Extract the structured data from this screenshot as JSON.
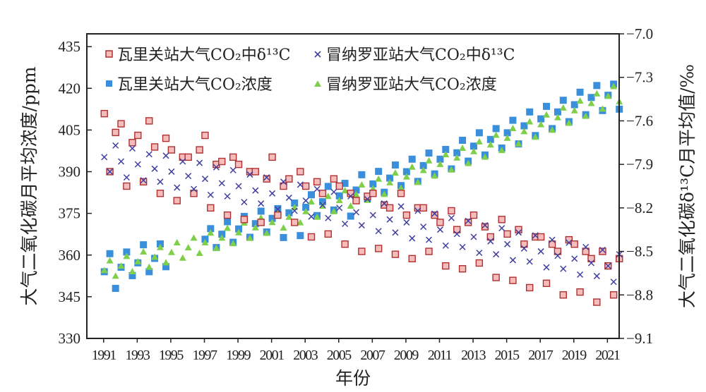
{
  "chart_data": {
    "type": "scatter",
    "xlabel": "年份",
    "ylabel_left": "大气二氧化碳月平均浓度/ppm",
    "ylabel_right": "大气二氧化碳δ¹³C月平均值/‰",
    "xlim": [
      1990,
      2021.7
    ],
    "ylim_left": [
      330,
      439.6
    ],
    "ylim_right": [
      -9.1,
      -7.0
    ],
    "xticks": [
      1991,
      1993,
      1995,
      1997,
      1999,
      2001,
      2003,
      2005,
      2007,
      2009,
      2011,
      2013,
      2015,
      2017,
      2019,
      2021
    ],
    "yticks_left": [
      330,
      345,
      360,
      375,
      390,
      405,
      420,
      435
    ],
    "yticks_right": [
      "-9.1",
      "-8.8",
      "-8.5",
      "-8.2",
      "-7.9",
      "-7.6",
      "-7.3",
      "-7.0"
    ],
    "grid": false,
    "legend_placement": "top-left",
    "x": [
      1991.04,
      1991.37,
      1991.71,
      1992.04,
      1992.37,
      1992.71,
      1993.04,
      1993.37,
      1993.71,
      1994.04,
      1994.37,
      1994.71,
      1995.04,
      1995.37,
      1995.71,
      1996.04,
      1996.37,
      1996.71,
      1997.04,
      1997.37,
      1997.71,
      1998.04,
      1998.37,
      1998.71,
      1999.04,
      1999.37,
      1999.71,
      2000.04,
      2000.37,
      2000.71,
      2001.04,
      2001.37,
      2001.71,
      2002.04,
      2002.37,
      2002.71,
      2003.04,
      2003.37,
      2003.71,
      2004.04,
      2004.37,
      2004.71,
      2005.04,
      2005.37,
      2005.71,
      2006.04,
      2006.37,
      2006.71,
      2007.04,
      2007.37,
      2007.71,
      2008.04,
      2008.37,
      2008.71,
      2009.04,
      2009.37,
      2009.71,
      2010.04,
      2010.37,
      2010.71,
      2011.04,
      2011.37,
      2011.71,
      2012.04,
      2012.37,
      2012.71,
      2013.04,
      2013.37,
      2013.71,
      2014.04,
      2014.37,
      2014.71,
      2015.04,
      2015.37,
      2015.71,
      2016.04,
      2016.37,
      2016.71,
      2017.04,
      2017.37,
      2017.71,
      2018.04,
      2018.37,
      2018.71,
      2019.04,
      2019.37,
      2019.71,
      2020.04,
      2020.37,
      2020.71,
      2021.04,
      2021.37,
      2021.71
    ],
    "series": [
      {
        "name": "瓦里关站大气CO₂中δ¹³C",
        "axis": "right",
        "marker": "square-open",
        "color": "#b03030",
        "fill": "#f5bcbc",
        "values": [
          -7.55,
          -7.95,
          -7.68,
          -7.62,
          -8.05,
          -7.75,
          -7.7,
          -8.02,
          -7.6,
          -7.78,
          -8.1,
          -7.72,
          -7.8,
          -8.15,
          -7.85,
          -7.85,
          -8.1,
          -7.8,
          -7.7,
          -8.2,
          -7.9,
          -7.88,
          -8.25,
          -7.85,
          -7.9,
          -8.28,
          -7.95,
          -7.95,
          -8.3,
          -8.0,
          -7.85,
          -8.25,
          -8.05,
          -8.0,
          -8.3,
          -7.95,
          -8.05,
          -8.4,
          -8.02,
          -8.1,
          -8.38,
          -8.0,
          -8.05,
          -8.45,
          -8.1,
          -8.15,
          -8.5,
          -8.12,
          -8.1,
          -8.48,
          -8.18,
          -8.2,
          -8.52,
          -8.1,
          -8.25,
          -8.55,
          -8.2,
          -8.2,
          -8.5,
          -8.25,
          -8.3,
          -8.6,
          -8.22,
          -8.35,
          -8.62,
          -8.3,
          -8.25,
          -8.58,
          -8.33,
          -8.4,
          -8.68,
          -8.28,
          -8.38,
          -8.7,
          -8.35,
          -8.45,
          -8.75,
          -8.4,
          -8.4,
          -8.72,
          -8.45,
          -8.5,
          -8.8,
          -8.42,
          -8.45,
          -8.78,
          -8.5,
          -8.55,
          -8.85,
          -8.5,
          -8.6,
          -8.8,
          -8.55
        ]
      },
      {
        "name": "冒纳罗亚站大气CO₂中δ¹³C",
        "axis": "right",
        "marker": "cross",
        "color": "#3f3f9f",
        "values": [
          -7.85,
          -7.95,
          -7.77,
          -7.88,
          -7.99,
          -7.79,
          -7.9,
          -8.01,
          -7.83,
          -7.93,
          -8.02,
          -7.84,
          -7.95,
          -8.06,
          -7.88,
          -7.98,
          -8.07,
          -7.89,
          -8.0,
          -8.11,
          -7.92,
          -8.03,
          -8.12,
          -7.94,
          -8.05,
          -8.16,
          -7.97,
          -8.08,
          -8.17,
          -7.99,
          -8.1,
          -8.21,
          -8.02,
          -8.13,
          -8.22,
          -8.04,
          -8.15,
          -8.26,
          -8.07,
          -8.18,
          -8.27,
          -8.09,
          -8.2,
          -8.31,
          -8.12,
          -8.23,
          -8.32,
          -8.14,
          -8.25,
          -8.36,
          -8.17,
          -8.28,
          -8.37,
          -8.19,
          -8.3,
          -8.41,
          -8.22,
          -8.33,
          -8.42,
          -8.24,
          -8.35,
          -8.46,
          -8.27,
          -8.38,
          -8.47,
          -8.29,
          -8.4,
          -8.51,
          -8.32,
          -8.43,
          -8.52,
          -8.34,
          -8.45,
          -8.56,
          -8.37,
          -8.48,
          -8.57,
          -8.39,
          -8.5,
          -8.61,
          -8.42,
          -8.53,
          -8.62,
          -8.44,
          -8.55,
          -8.66,
          -8.47,
          -8.58,
          -8.67,
          -8.49,
          -8.6,
          -8.71,
          -8.52
        ]
      },
      {
        "name": "瓦里关站大气CO₂浓度",
        "axis": "left",
        "marker": "square-filled",
        "color": "#3a8fdc",
        "values": [
          354.0,
          360.5,
          348.0,
          355.6,
          361.1,
          352.6,
          357.2,
          363.7,
          354.0,
          358.8,
          364.0,
          355.8,
          null,
          null,
          null,
          null,
          null,
          null,
          365.7,
          369.5,
          362.7,
          367.5,
          372.0,
          364.6,
          369.4,
          373.9,
          366.4,
          371.3,
          375.8,
          368.3,
          373.2,
          376.7,
          366.3,
          375.2,
          378.7,
          367.0,
          377.2,
          381.7,
          374.2,
          379.2,
          384.7,
          376.2,
          381.3,
          385.8,
          374.0,
          383.4,
          388.9,
          380.4,
          385.6,
          390.1,
          382.6,
          387.7,
          392.4,
          385.0,
          390.0,
          394.5,
          386.5,
          392.2,
          396.7,
          389.2,
          394.5,
          398.0,
          391.0,
          396.8,
          401.3,
          393.8,
          399.2,
          404.0,
          396.0,
          401.6,
          405.5,
          398.5,
          404.0,
          408.5,
          400.0,
          406.5,
          411.5,
          403.0,
          409.0,
          413.5,
          405.5,
          411.5,
          415.7,
          408.0,
          414.1,
          418.6,
          410.5,
          416.7,
          421.0,
          412.0,
          417.5,
          421.5,
          412.5
        ]
      },
      {
        "name": "冒纳罗亚站大气CO₂浓度",
        "axis": "left",
        "marker": "triangle",
        "color": "#7fcf4a",
        "values": [
          354.5,
          358.0,
          352.5,
          356.1,
          359.6,
          354.1,
          357.7,
          361.2,
          355.7,
          359.3,
          362.8,
          357.3,
          361.0,
          364.5,
          359.0,
          362.7,
          366.2,
          360.7,
          364.5,
          368.0,
          362.5,
          366.2,
          369.7,
          364.2,
          368.1,
          371.6,
          366.1,
          369.9,
          373.4,
          367.9,
          371.8,
          375.3,
          369.8,
          373.7,
          377.2,
          371.7,
          375.7,
          379.2,
          373.7,
          377.7,
          381.2,
          375.7,
          379.7,
          383.2,
          377.7,
          381.8,
          385.3,
          379.8,
          383.9,
          387.4,
          381.9,
          386.1,
          389.6,
          384.1,
          388.2,
          391.7,
          386.2,
          390.5,
          394.0,
          388.5,
          392.7,
          396.2,
          390.7,
          395.0,
          398.5,
          393.0,
          397.3,
          400.8,
          395.3,
          399.7,
          403.2,
          397.7,
          402.1,
          405.6,
          400.1,
          404.5,
          408.0,
          402.5,
          407.0,
          410.5,
          405.0,
          409.5,
          413.0,
          407.5,
          412.0,
          415.5,
          410.0,
          414.6,
          418.1,
          412.6,
          417.2,
          420.7,
          415.2
        ]
      }
    ]
  }
}
